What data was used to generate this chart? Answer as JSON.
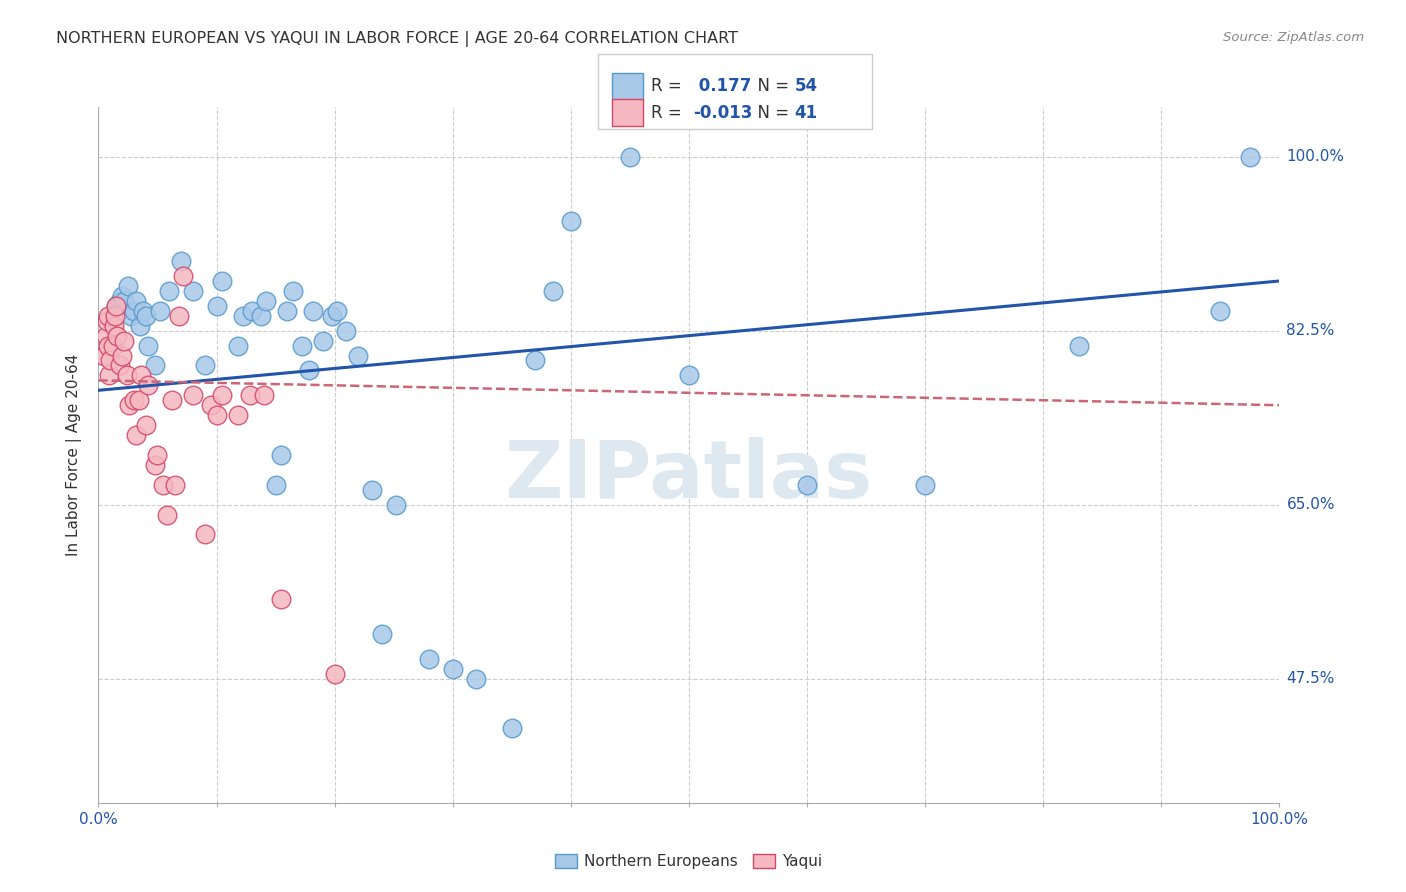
{
  "title": "NORTHERN EUROPEAN VS YAQUI IN LABOR FORCE | AGE 20-64 CORRELATION CHART",
  "source": "Source: ZipAtlas.com",
  "ylabel": "In Labor Force | Age 20-64",
  "xlim": [
    0.0,
    1.0
  ],
  "ylim": [
    0.35,
    1.05
  ],
  "x_ticks": [
    0.0,
    0.1,
    0.2,
    0.3,
    0.4,
    0.5,
    0.6,
    0.7,
    0.8,
    0.9,
    1.0
  ],
  "y_ticks": [
    0.475,
    0.65,
    0.825,
    1.0
  ],
  "y_tick_labels": [
    "47.5%",
    "65.0%",
    "82.5%",
    "100.0%"
  ],
  "R_blue": 0.177,
  "N_blue": 54,
  "R_pink": -0.013,
  "N_pink": 41,
  "blue_color": "#a8c8e8",
  "blue_edge": "#5599cc",
  "pink_color": "#f5b8c0",
  "pink_edge": "#d44466",
  "line_blue": "#2255aa",
  "line_pink": "#cc6677",
  "watermark_color": "#dde8f0",
  "blue_points_x": [
    0.015,
    0.018,
    0.02,
    0.022,
    0.025,
    0.028,
    0.03,
    0.032,
    0.035,
    0.038,
    0.04,
    0.042,
    0.048,
    0.052,
    0.06,
    0.07,
    0.08,
    0.09,
    0.1,
    0.105,
    0.118,
    0.122,
    0.13,
    0.138,
    0.142,
    0.15,
    0.155,
    0.16,
    0.165,
    0.172,
    0.178,
    0.182,
    0.19,
    0.198,
    0.202,
    0.21,
    0.22,
    0.232,
    0.24,
    0.252,
    0.28,
    0.3,
    0.32,
    0.35,
    0.37,
    0.385,
    0.4,
    0.45,
    0.5,
    0.6,
    0.7,
    0.83,
    0.95,
    0.975
  ],
  "blue_points_y": [
    0.85,
    0.855,
    0.86,
    0.855,
    0.87,
    0.84,
    0.845,
    0.855,
    0.83,
    0.845,
    0.84,
    0.81,
    0.79,
    0.845,
    0.865,
    0.895,
    0.865,
    0.79,
    0.85,
    0.875,
    0.81,
    0.84,
    0.845,
    0.84,
    0.855,
    0.67,
    0.7,
    0.845,
    0.865,
    0.81,
    0.785,
    0.845,
    0.815,
    0.84,
    0.845,
    0.825,
    0.8,
    0.665,
    0.52,
    0.65,
    0.495,
    0.485,
    0.475,
    0.425,
    0.795,
    0.865,
    0.935,
    1.0,
    0.78,
    0.67,
    0.67,
    0.81,
    0.845,
    1.0
  ],
  "pink_points_x": [
    0.005,
    0.006,
    0.007,
    0.008,
    0.008,
    0.009,
    0.01,
    0.012,
    0.013,
    0.014,
    0.015,
    0.016,
    0.018,
    0.02,
    0.022,
    0.024,
    0.026,
    0.03,
    0.032,
    0.034,
    0.036,
    0.04,
    0.042,
    0.048,
    0.05,
    0.055,
    0.058,
    0.062,
    0.065,
    0.068,
    0.072,
    0.08,
    0.09,
    0.095,
    0.1,
    0.105,
    0.118,
    0.128,
    0.14,
    0.155,
    0.2
  ],
  "pink_points_y": [
    0.8,
    0.82,
    0.835,
    0.84,
    0.81,
    0.78,
    0.795,
    0.81,
    0.83,
    0.84,
    0.85,
    0.82,
    0.79,
    0.8,
    0.815,
    0.78,
    0.75,
    0.755,
    0.72,
    0.755,
    0.78,
    0.73,
    0.77,
    0.69,
    0.7,
    0.67,
    0.64,
    0.755,
    0.67,
    0.84,
    0.88,
    0.76,
    0.62,
    0.75,
    0.74,
    0.76,
    0.74,
    0.76,
    0.76,
    0.555,
    0.48
  ],
  "blue_line_x": [
    0.0,
    1.0
  ],
  "blue_line_y": [
    0.765,
    0.875
  ],
  "pink_line_x": [
    0.0,
    1.0
  ],
  "pink_line_y": [
    0.775,
    0.75
  ]
}
